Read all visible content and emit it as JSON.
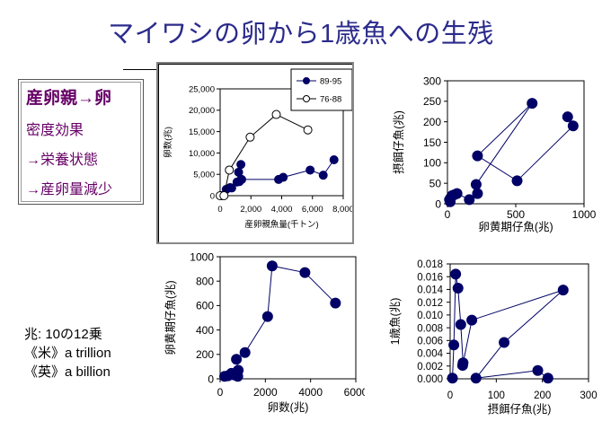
{
  "title": "マイワシの卵から1歳魚への生残",
  "side_box": {
    "heading": "産卵親→卵",
    "lines": [
      "密度効果",
      "→栄養状態",
      "→産卵量減少"
    ]
  },
  "note": {
    "lines": [
      "兆: 10の12乗",
      "《米》a trillion",
      "《英》a billion"
    ]
  },
  "colors": {
    "title": "#2b2b8c",
    "side_text": "#660066",
    "series": "#000066"
  },
  "chart_data": [
    {
      "type": "scatter",
      "id": "spawners-eggs",
      "title": "",
      "xlabel": "産卵親魚量(千トン)",
      "ylabel": "卵数(兆)",
      "xlim": [
        0,
        8000
      ],
      "ylim": [
        0,
        25000
      ],
      "xticks": [
        0,
        2000,
        4000,
        6000,
        8000
      ],
      "xtick_labels": [
        "0",
        "2,000",
        "4,000",
        "6,000",
        "8,000"
      ],
      "yticks": [
        0,
        5000,
        10000,
        15000,
        20000,
        25000
      ],
      "ytick_labels": [
        "0",
        "5,000",
        "10,000",
        "15,000",
        "20,000",
        "25,000"
      ],
      "legend": "top-right",
      "series": [
        {
          "name": "89-95",
          "marker": "filled",
          "x": [
            100,
            400,
            650,
            750,
            1100,
            1200,
            1350,
            1250,
            1400,
            3800,
            4100,
            5850,
            6700,
            7400
          ],
          "y": [
            0,
            1500,
            1900,
            1800,
            3200,
            5500,
            7300,
            3300,
            3800,
            3800,
            4300,
            6000,
            4800,
            8400
          ]
        },
        {
          "name": "76-88",
          "marker": "open",
          "x": [
            0,
            250,
            600,
            1950,
            3650,
            5700
          ],
          "y": [
            0,
            0,
            6000,
            13700,
            19000,
            15400
          ]
        }
      ]
    },
    {
      "type": "scatter",
      "id": "yolk-feeding",
      "title": "",
      "xlabel": "卵黄期仔魚(兆)",
      "ylabel": "摂餌仔魚(兆)",
      "xlim": [
        0,
        1000
      ],
      "ylim": [
        0,
        300
      ],
      "xticks": [
        0,
        500,
        1000
      ],
      "xtick_labels": [
        "0",
        "500",
        "1000"
      ],
      "yticks": [
        0,
        50,
        100,
        150,
        200,
        250,
        300
      ],
      "ytick_labels": [
        "0",
        "50",
        "100",
        "150",
        "200",
        "250",
        "300"
      ],
      "series": [
        {
          "name": "",
          "marker": "filled",
          "x": [
            20,
            15,
            25,
            35,
            50,
            70,
            160,
            220,
            210,
            620,
            220,
            510,
            920,
            880
          ],
          "y": [
            5,
            10,
            15,
            20,
            22,
            25,
            10,
            25,
            47,
            245,
            117,
            56,
            190,
            212
          ]
        }
      ]
    },
    {
      "type": "scatter",
      "id": "eggs-yolk",
      "title": "",
      "xlabel": "卵数(兆)",
      "ylabel": "卵黄期仔魚(兆)",
      "xlim": [
        0,
        6000
      ],
      "ylim": [
        0,
        1000
      ],
      "xticks": [
        0,
        2000,
        4000,
        6000
      ],
      "xtick_labels": [
        "0",
        "2000",
        "4000",
        "6000"
      ],
      "yticks": [
        0,
        200,
        400,
        600,
        800,
        1000
      ],
      "ytick_labels": [
        "0",
        "200",
        "400",
        "600",
        "800",
        "1000"
      ],
      "series": [
        {
          "name": "",
          "marker": "filled",
          "x": [
            200,
            350,
            500,
            650,
            780,
            800,
            720,
            1100,
            2100,
            2300,
            3750,
            5100
          ],
          "y": [
            20,
            25,
            45,
            30,
            20,
            70,
            160,
            215,
            510,
            925,
            870,
            620
          ]
        }
      ]
    },
    {
      "type": "scatter",
      "id": "feeding-age1",
      "title": "",
      "xlabel": "摂餌仔魚(兆)",
      "ylabel": "1歳魚(兆)",
      "xlim": [
        0,
        300
      ],
      "ylim": [
        0,
        0.018
      ],
      "xticks": [
        0,
        100,
        200,
        300
      ],
      "xtick_labels": [
        "0",
        "100",
        "200",
        "300"
      ],
      "yticks": [
        0,
        0.002,
        0.004,
        0.006,
        0.008,
        0.01,
        0.012,
        0.014,
        0.016,
        0.018
      ],
      "ytick_labels": [
        "0.000",
        "0.002",
        "0.004",
        "0.006",
        "0.008",
        "0.010",
        "0.012",
        "0.014",
        "0.016",
        "0.018"
      ],
      "series": [
        {
          "name": "",
          "marker": "filled",
          "x": [
            5,
            8,
            12,
            17,
            23,
            28,
            27,
            47,
            245,
            117,
            56,
            190,
            212
          ],
          "y": [
            0.0001,
            0.0053,
            0.0164,
            0.0142,
            0.0085,
            0.0025,
            0.0021,
            0.0092,
            0.0139,
            0.0057,
            0.0001,
            0.0013,
            0.0001
          ]
        }
      ]
    }
  ]
}
